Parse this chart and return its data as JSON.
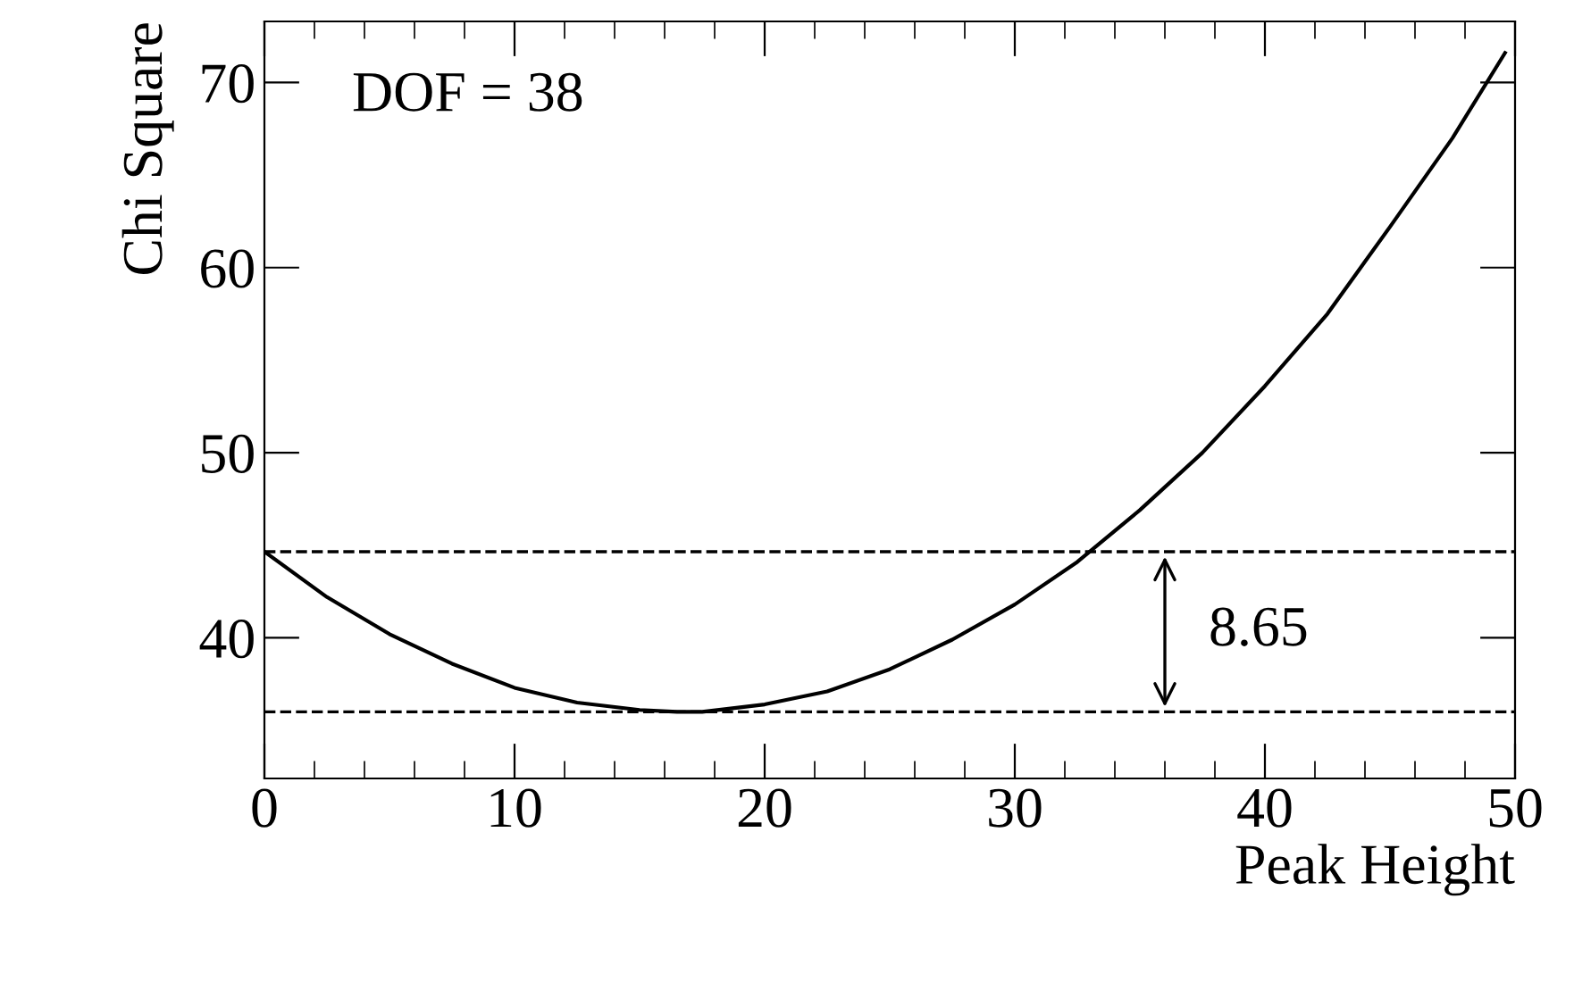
{
  "chart_data": {
    "type": "line",
    "xlabel": "Peak Height",
    "ylabel": "Chi Square",
    "x": [
      0,
      2.5,
      5,
      7.5,
      10,
      12.5,
      15,
      16.5,
      17.5,
      20,
      22.5,
      25,
      27.5,
      30,
      32.5,
      35,
      37.5,
      40,
      42.5,
      45,
      47.5,
      49.6
    ],
    "series": [
      {
        "color": "#000000",
        "values": [
          44.65,
          42.2,
          40.2,
          38.6,
          37.3,
          36.5,
          36.1,
          36.0,
          36.0,
          36.4,
          37.1,
          38.3,
          39.9,
          41.8,
          44.1,
          46.9,
          50.0,
          53.6,
          57.5,
          62.2,
          67.0,
          71.6
        ]
      }
    ],
    "xlim": [
      0,
      50
    ],
    "ylim": [
      32.4,
      73.3
    ],
    "xticks": [
      0,
      10,
      20,
      30,
      40,
      50
    ],
    "yticks": [
      40,
      50,
      60,
      70
    ],
    "ref_lines": [
      {
        "axis": "y",
        "value": 44.65,
        "line_style": "dashed",
        "color": "#000000"
      },
      {
        "axis": "y",
        "value": 36.0,
        "line_style": "dashed",
        "color": "#000000"
      }
    ],
    "annotations": [
      "DOF = 38",
      "8.65"
    ],
    "grid": false,
    "legend": false,
    "marker": "none",
    "line_style": "solid"
  }
}
